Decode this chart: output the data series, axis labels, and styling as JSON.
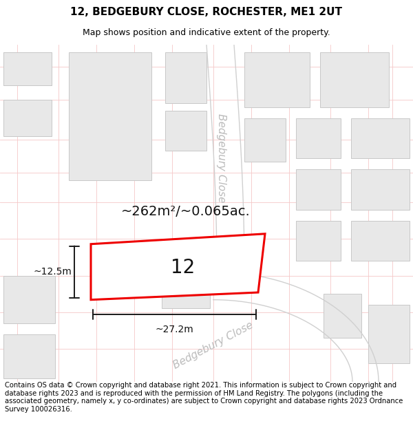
{
  "title_line1": "12, BEDGEBURY CLOSE, ROCHESTER, ME1 2UT",
  "title_line2": "Map shows position and indicative extent of the property.",
  "footer_text": "Contains OS data © Crown copyright and database right 2021. This information is subject to Crown copyright and database rights 2023 and is reproduced with the permission of HM Land Registry. The polygons (including the associated geometry, namely x, y co-ordinates) are subject to Crown copyright and database rights 2023 Ordnance Survey 100026316.",
  "area_text": "~262m²/~0.065ac.",
  "dim_width": "~27.2m",
  "dim_height": "~12.5m",
  "property_number": "12",
  "bg_color": "#ffffff",
  "map_bg": "#f9f9f9",
  "building_fill": "#e8e8e8",
  "building_edge": "#c8c8c8",
  "grid_color": "#f5c8c8",
  "road_line_color": "#d0d0d0",
  "road_label_color": "#bbbbbb",
  "property_edge_color": "#ee0000",
  "annotation_color": "#1a1a1a",
  "title_fontsize": 11,
  "subtitle_fontsize": 9,
  "footer_fontsize": 7.2,
  "property_label_fontsize": 20,
  "area_fontsize": 14,
  "dim_fontsize": 10,
  "road_label_fontsize": 11
}
